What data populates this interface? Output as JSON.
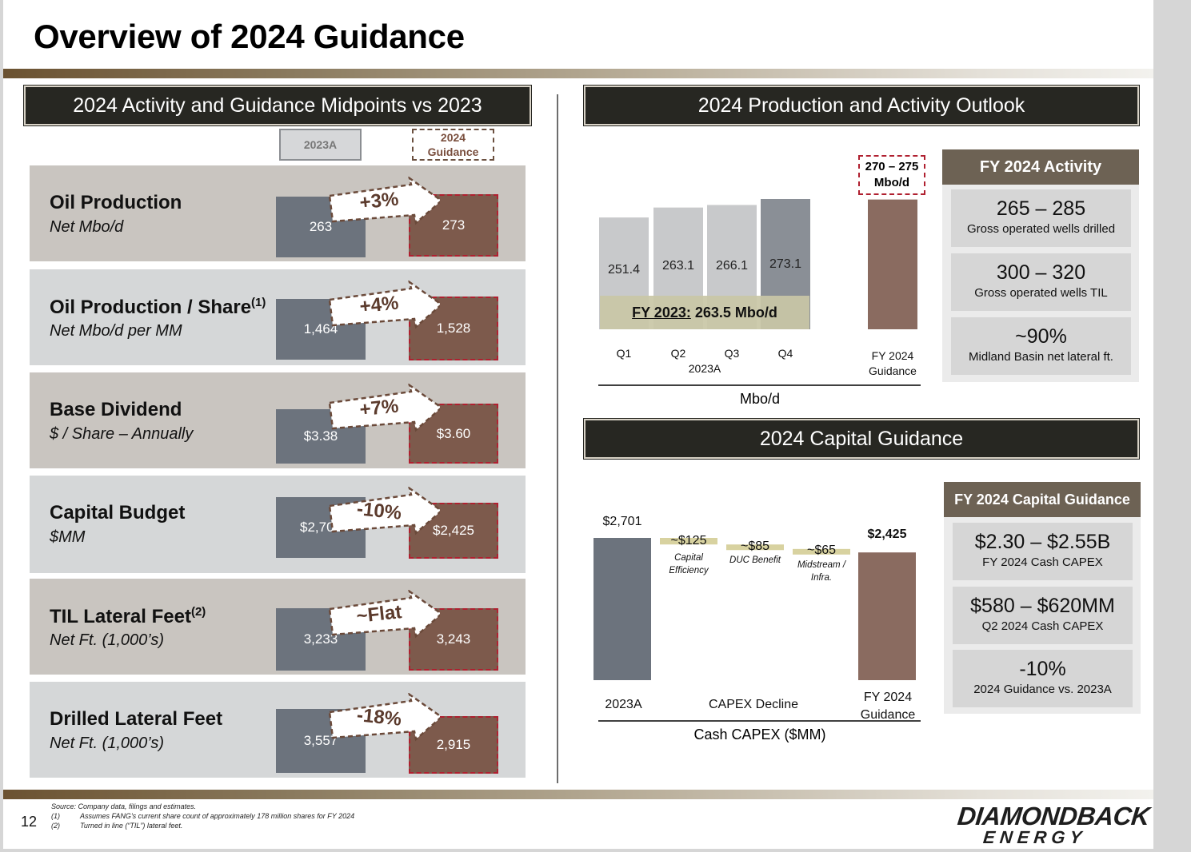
{
  "title": "Overview of 2024 Guidance",
  "left": {
    "header": "2024 Activity and Guidance Midpoints vs 2023",
    "legend": {
      "a2023": "2023A",
      "g2024_line1": "2024",
      "g2024_line2": "Guidance"
    },
    "rows": [
      {
        "title": "Oil Production",
        "sup": "",
        "sub": "Net Mbo/d",
        "v2023": "263",
        "v2024": "273",
        "change": "+3%"
      },
      {
        "title": "Oil Production / Share",
        "sup": "(1)",
        "sub": "Net Mbo/d per MM",
        "v2023": "1,464",
        "v2024": "1,528",
        "change": "+4%"
      },
      {
        "title": "Base Dividend",
        "sup": "",
        "sub": "$ / Share – Annually",
        "v2023": "$3.38",
        "v2024": "$3.60",
        "change": "+7%"
      },
      {
        "title": "Capital Budget",
        "sup": "",
        "sub": "$MM",
        "v2023": "$2,701",
        "v2024": "$2,425",
        "change": "-10%"
      },
      {
        "title": "TIL Lateral Feet",
        "sup": "(2)",
        "sub": "Net Ft. (1,000’s)",
        "v2023": "3,233",
        "v2024": "3,243",
        "change": "~Flat"
      },
      {
        "title": "Drilled Lateral Feet",
        "sup": "",
        "sub": "Net Ft. (1,000’s)",
        "v2023": "3,557",
        "v2024": "2,915",
        "change": "-18%"
      }
    ]
  },
  "production": {
    "header": "2024 Production and Activity Outlook",
    "callout_line1": "270 – 275",
    "callout_line2": "Mbo/d",
    "fy2023_label": "FY 2023:",
    "fy2023_value": " 263.5 Mbo/d",
    "period_label": "2023A",
    "guidance_label_line1": "FY 2024",
    "guidance_label_line2": "Guidance",
    "axis_label": "Mbo/d",
    "activity_header": "FY 2024 Activity",
    "activity": [
      {
        "value": "265 – 285",
        "label": "Gross operated wells drilled"
      },
      {
        "value": "300 – 320",
        "label": "Gross operated wells TIL"
      },
      {
        "value": "~90%",
        "label": "Midland Basin net lateral ft."
      }
    ]
  },
  "capital": {
    "header": "2024 Capital Guidance",
    "x_label_start": "2023A",
    "x_label_mid": "CAPEX Decline",
    "x_label_end_line1": "FY 2024",
    "x_label_end_line2": "Guidance",
    "axis_label": "Cash CAPEX ($MM)",
    "guidance_header": "FY 2024 Capital Guidance",
    "guidance": [
      {
        "value": "$2.30 – $2.55B",
        "label": "FY 2024 Cash CAPEX"
      },
      {
        "value": "$580 – $620MM",
        "label": "Q2 2024 Cash CAPEX"
      },
      {
        "value": "-10%",
        "label": "2024 Guidance vs. 2023A"
      }
    ]
  },
  "chart_data": [
    {
      "type": "bar",
      "categories": [
        "Q1",
        "Q2",
        "Q3",
        "Q4",
        "FY 2024 Guidance"
      ],
      "values": [
        251.4,
        263.1,
        266.1,
        273.1,
        272.5
      ],
      "value_labels": [
        "251.4",
        "263.1",
        "266.1",
        "273.1",
        ""
      ],
      "colors": [
        "#c8c9cb",
        "#c8c9cb",
        "#c8c9cb",
        "#8a8f96",
        "#8a6b60"
      ],
      "title": "",
      "xlabel": "Mbo/d",
      "ylabel": ""
    },
    {
      "type": "bar",
      "categories": [
        "2023A",
        "Capital Efficiency",
        "DUC Benefit",
        "Midstream / Infra.",
        "FY 2024 Guidance"
      ],
      "values": [
        2701,
        -125,
        -85,
        -65,
        2425
      ],
      "value_labels": [
        "$2,701",
        "~$125",
        "~$85",
        "~$65",
        "$2,425"
      ],
      "category_labels": [
        "",
        "Capital Efficiency",
        "DUC Benefit",
        "Midstream / Infra.",
        ""
      ],
      "colors": [
        "#6c737d",
        "#d8d2a0",
        "#d8d2a0",
        "#d8d2a0",
        "#8a6b60"
      ],
      "title": "",
      "xlabel": "Cash CAPEX ($MM)",
      "ylabel": ""
    }
  ],
  "footer": {
    "page_number": "12",
    "source": "Source: Company data, filings and estimates.",
    "note1_num": "(1)",
    "note1": "Assumes FANG’s current share count of approximately 178 million shares for FY 2024",
    "note2_num": "(2)",
    "note2": "Turned in line (“TIL”) lateral feet.",
    "logo_line1": "DIAMONDBACK",
    "logo_line2": "ENERGY"
  }
}
